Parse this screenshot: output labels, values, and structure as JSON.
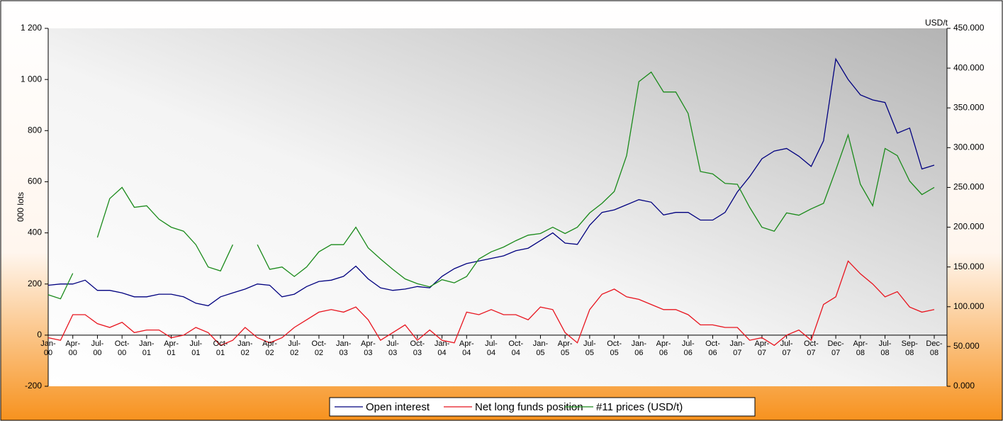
{
  "chart_data": {
    "type": "line",
    "ylabel": "000 lots",
    "y2label": "USD/t",
    "categories": [
      "Jan-00",
      null,
      "Apr-00",
      null,
      "Jul-00",
      null,
      "Oct-00",
      null,
      "Jan-01",
      null,
      "Apr-01",
      null,
      "Jul-01",
      null,
      "Oct-01",
      null,
      "Jan-02",
      null,
      "Apr-02",
      null,
      "Jul-02",
      null,
      "Oct-02",
      null,
      "Jan-03",
      null,
      "Apr-03",
      null,
      "Jul-03",
      null,
      "Oct-03",
      null,
      "Jan-04",
      null,
      "Apr-04",
      null,
      "Jul-04",
      null,
      "Oct-04",
      null,
      "Jan-05",
      null,
      "Apr-05",
      null,
      "Jul-05",
      null,
      "Oct-05",
      null,
      "Jan-06",
      null,
      "Apr-06",
      null,
      "Jul-06",
      null,
      "Oct-06",
      null,
      "Jan-07",
      null,
      "Apr-07",
      null,
      "Jul-07",
      null,
      "Oct-07",
      null,
      "Dec-07",
      null,
      "Apr-08",
      null,
      "Jul-08",
      null,
      "Sep-08",
      null,
      "Dec-08"
    ],
    "series": [
      {
        "name": "Open interest",
        "color": "#00007f",
        "axis": "y",
        "values": [
          195,
          200,
          200,
          215,
          175,
          175,
          165,
          150,
          150,
          160,
          160,
          150,
          125,
          115,
          150,
          165,
          180,
          200,
          195,
          150,
          160,
          190,
          210,
          215,
          230,
          270,
          220,
          185,
          175,
          180,
          190,
          185,
          230,
          260,
          280,
          290,
          300,
          310,
          330,
          340,
          370,
          400,
          360,
          355,
          430,
          480,
          490,
          510,
          530,
          520,
          470,
          480,
          480,
          450,
          450,
          480,
          560,
          620,
          690,
          720,
          730,
          700,
          660,
          760,
          1080,
          1000,
          940,
          920,
          910,
          790,
          810,
          650,
          665
        ]
      },
      {
        "name": "Net long funds position",
        "color": "#e8141e",
        "axis": "y",
        "values": [
          -10,
          -20,
          80,
          80,
          45,
          30,
          50,
          10,
          20,
          20,
          -10,
          0,
          30,
          10,
          -40,
          -20,
          30,
          -10,
          -30,
          -10,
          30,
          60,
          90,
          100,
          90,
          110,
          60,
          -20,
          10,
          40,
          -20,
          20,
          -20,
          -30,
          90,
          80,
          100,
          80,
          80,
          60,
          110,
          100,
          10,
          -30,
          100,
          160,
          180,
          150,
          140,
          120,
          100,
          100,
          80,
          40,
          40,
          30,
          30,
          -20,
          -10,
          -40,
          0,
          20,
          -20,
          120,
          150,
          290,
          240,
          200,
          150,
          170,
          110,
          90,
          100
        ]
      },
      {
        "name": "#11 prices (USD/t)",
        "color": "#1a8a1a",
        "axis": "y2",
        "values": [
          115,
          110,
          142,
          null,
          187,
          236,
          250,
          225,
          227,
          210,
          200,
          195,
          178,
          150,
          145,
          178,
          null,
          178,
          147,
          150,
          138,
          150,
          169,
          178,
          178,
          200,
          174,
          160,
          147,
          135,
          129,
          125,
          134,
          130,
          138,
          160,
          169,
          175,
          183,
          190,
          192,
          200,
          192,
          200,
          218,
          230,
          245,
          290,
          383,
          395,
          370,
          370,
          343,
          270,
          267,
          255,
          254,
          225,
          200,
          195,
          218,
          215,
          223,
          230,
          272,
          316,
          254,
          227,
          299,
          290,
          258,
          241,
          250
        ]
      }
    ],
    "ylim": [
      -200,
      1200
    ],
    "yticks": [
      -200,
      0,
      200,
      400,
      600,
      800,
      {
        "value": 1000,
        "label": "1 000"
      },
      {
        "value": 1200,
        "label": "1 200"
      }
    ],
    "y2lim": [
      0,
      450
    ],
    "y2ticks": [
      {
        "value": 0,
        "label": "0.000"
      },
      {
        "value": 50,
        "label": "50.000"
      },
      {
        "value": 100,
        "label": "100.000"
      },
      {
        "value": 150,
        "label": "150.000"
      },
      {
        "value": 200,
        "label": "200.000"
      },
      {
        "value": 250,
        "label": "250.000"
      },
      {
        "value": 300,
        "label": "300.000"
      },
      {
        "value": 350,
        "label": "350.000"
      },
      {
        "value": 400,
        "label": "400.000"
      },
      {
        "value": 450,
        "label": "450.000"
      }
    ],
    "legend": "bottom"
  }
}
